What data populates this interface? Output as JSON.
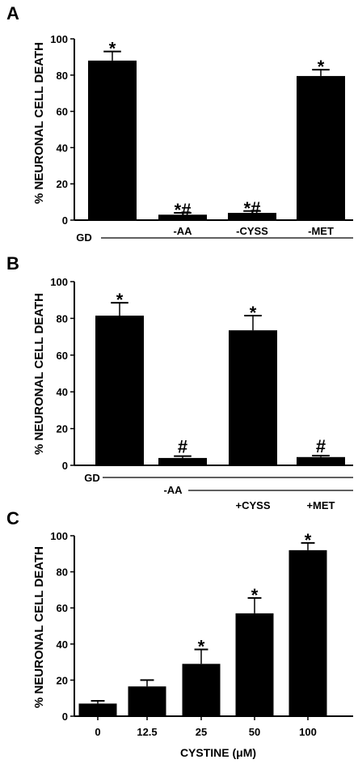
{
  "chart_data": [
    {
      "type": "bar",
      "panel": "A",
      "ylabel": "% NEURONAL CELL DEATH",
      "ylim": [
        0,
        100
      ],
      "yticks": [
        "0",
        "20",
        "40",
        "60",
        "80",
        "100"
      ],
      "values": [
        88,
        3,
        4,
        79.5
      ],
      "errors": [
        5,
        1,
        1,
        3.5
      ],
      "markers": [
        "*",
        "*#",
        "*#",
        "*"
      ],
      "group_label": "GD",
      "bar_labels": [
        "",
        "-AA",
        "-CYSS",
        "-MET"
      ]
    },
    {
      "type": "bar",
      "panel": "B",
      "ylabel": "% NEURONAL CELL DEATH",
      "ylim": [
        0,
        100
      ],
      "yticks": [
        "0",
        "20",
        "40",
        "60",
        "80",
        "100"
      ],
      "values": [
        81.5,
        4,
        73.5,
        4.5
      ],
      "errors": [
        7,
        1,
        8,
        0.8
      ],
      "markers": [
        "*",
        "#",
        "*",
        "#"
      ],
      "group_labels": [
        "GD",
        "-AA"
      ],
      "bar_labels": [
        "",
        "",
        "+CYSS",
        "+MET"
      ]
    },
    {
      "type": "bar",
      "panel": "C",
      "ylabel": "% NEURONAL CELL DEATH",
      "xlabel": "CYSTINE (μM)",
      "ylim": [
        0,
        100
      ],
      "yticks": [
        "0",
        "20",
        "40",
        "60",
        "80",
        "100"
      ],
      "categories": [
        "0",
        "12.5",
        "25",
        "50",
        "100"
      ],
      "values": [
        7,
        16.5,
        29,
        57,
        92
      ],
      "errors": [
        1.5,
        3.5,
        8,
        8.5,
        4
      ],
      "markers": [
        "",
        "",
        "*",
        "*",
        "*"
      ]
    }
  ]
}
